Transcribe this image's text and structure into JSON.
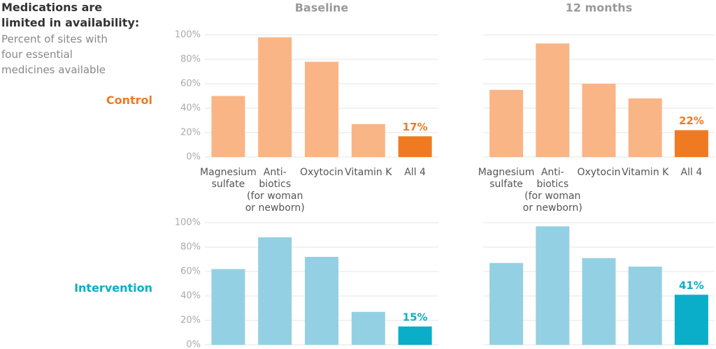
{
  "title": "Medications are\nlimited in availability:",
  "subtitle": "Percent of sites with\nfour essential\nmedicines available",
  "columns": [
    "Baseline",
    "12 months"
  ],
  "rows": [
    "Control",
    "Intervention"
  ],
  "row_colors": [
    "#f07a22",
    "#0aaec8"
  ],
  "chart_data": [
    {
      "type": "bar",
      "categories": [
        "Magnesium\nsulfate",
        "Anti-\nbiotics\n(for woman\nor newborn)",
        "Oxytocin",
        "Vitamin K",
        "All 4"
      ],
      "values": [
        50,
        98,
        78,
        27,
        17
      ],
      "value_labels": [
        null,
        null,
        null,
        null,
        "17%"
      ],
      "colors": [
        "#f9b585",
        "#f9b585",
        "#f9b585",
        "#f9b585",
        "#f07a22"
      ],
      "ylim": [
        0,
        100
      ],
      "yticks": [
        {
          "value": 0,
          "label": "0%"
        },
        {
          "value": 20,
          "label": "20%"
        },
        {
          "value": 40,
          "label": "40%"
        },
        {
          "value": 60,
          "label": "60%"
        },
        {
          "value": 80,
          "label": "80%"
        },
        {
          "value": 100,
          "label": "100%"
        }
      ],
      "grid": true
    },
    {
      "type": "bar",
      "categories": [
        "Magnesium\nsulfate",
        "Anti-\nbiotics\n(for woman\nor newborn)",
        "Oxytocin",
        "Vitamin K",
        "All 4"
      ],
      "values": [
        55,
        93,
        60,
        48,
        22
      ],
      "value_labels": [
        null,
        null,
        null,
        null,
        "22%"
      ],
      "colors": [
        "#f9b585",
        "#f9b585",
        "#f9b585",
        "#f9b585",
        "#f07a22"
      ],
      "ylim": [
        0,
        100
      ],
      "yticks": [
        0,
        20,
        40,
        60,
        80,
        100
      ],
      "grid": true
    },
    {
      "type": "bar",
      "categories": [
        null,
        null,
        null,
        null,
        null
      ],
      "values": [
        62,
        88,
        72,
        27,
        15
      ],
      "value_labels": [
        null,
        null,
        null,
        null,
        "15%"
      ],
      "colors": [
        "#94d0e3",
        "#94d0e3",
        "#94d0e3",
        "#94d0e3",
        "#0aaec8"
      ],
      "ylim": [
        0,
        100
      ],
      "yticks": [
        {
          "value": 0,
          "label": "0%"
        },
        {
          "value": 20,
          "label": "20%"
        },
        {
          "value": 40,
          "label": "40%"
        },
        {
          "value": 60,
          "label": "60%"
        },
        {
          "value": 80,
          "label": "80%"
        },
        {
          "value": 100,
          "label": "100%"
        }
      ],
      "grid": true
    },
    {
      "type": "bar",
      "categories": [
        null,
        null,
        null,
        null,
        null
      ],
      "values": [
        67,
        97,
        71,
        64,
        41
      ],
      "value_labels": [
        null,
        null,
        null,
        null,
        "41%"
      ],
      "colors": [
        "#94d0e3",
        "#94d0e3",
        "#94d0e3",
        "#94d0e3",
        "#0aaec8"
      ],
      "ylim": [
        0,
        100
      ],
      "yticks": [
        0,
        20,
        40,
        60,
        80,
        100
      ],
      "grid": true
    }
  ]
}
